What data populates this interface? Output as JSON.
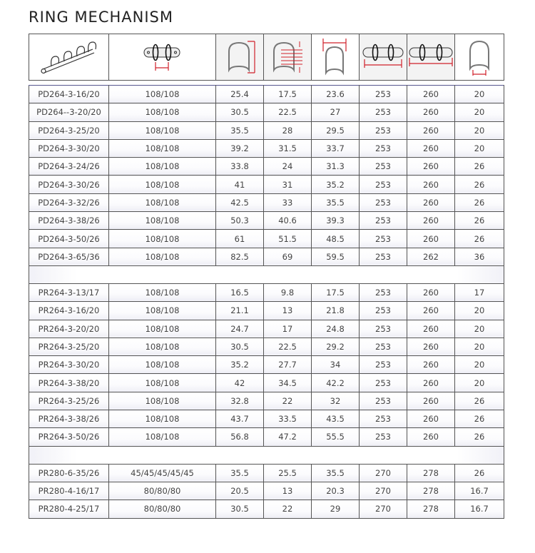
{
  "title": "RING MECHANISM",
  "header_icons": [
    "ring-mechanism-illustration-icon",
    "ring-pitch-icon",
    "ring-height-icon",
    "sheet-capacity-icon",
    "ring-width-icon",
    "base-length-icon",
    "overall-length-icon",
    "ring-base-width-icon"
  ],
  "groups": [
    [
      [
        "PD264-3-16/20",
        "108/108",
        "25.4",
        "17.5",
        "23.6",
        "253",
        "260",
        "20"
      ],
      [
        "PD264--3-20/20",
        "108/108",
        "30.5",
        "22.5",
        "27",
        "253",
        "260",
        "20"
      ],
      [
        "PD264-3-25/20",
        "108/108",
        "35.5",
        "28",
        "29.5",
        "253",
        "260",
        "20"
      ],
      [
        "PD264-3-30/20",
        "108/108",
        "39.2",
        "31.5",
        "33.7",
        "253",
        "260",
        "20"
      ],
      [
        "PD264-3-24/26",
        "108/108",
        "33.8",
        "24",
        "31.3",
        "253",
        "260",
        "26"
      ],
      [
        "PD264-3-30/26",
        "108/108",
        "41",
        "31",
        "35.2",
        "253",
        "260",
        "26"
      ],
      [
        "PD264-3-32/26",
        "108/108",
        "42.5",
        "33",
        "35.5",
        "253",
        "260",
        "26"
      ],
      [
        "PD264-3-38/26",
        "108/108",
        "50.3",
        "40.6",
        "39.3",
        "253",
        "260",
        "26"
      ],
      [
        "PD264-3-50/26",
        "108/108",
        "61",
        "51.5",
        "48.5",
        "253",
        "260",
        "26"
      ],
      [
        "PD264-3-65/36",
        "108/108",
        "82.5",
        "69",
        "59.5",
        "253",
        "262",
        "36"
      ]
    ],
    [
      [
        "PR264-3-13/17",
        "108/108",
        "16.5",
        "9.8",
        "17.5",
        "253",
        "260",
        "17"
      ],
      [
        "PR264-3-16/20",
        "108/108",
        "21.1",
        "13",
        "21.8",
        "253",
        "260",
        "20"
      ],
      [
        "PR264-3-20/20",
        "108/108",
        "24.7",
        "17",
        "24.8",
        "253",
        "260",
        "20"
      ],
      [
        "PR264-3-25/20",
        "108/108",
        "30.5",
        "22.5",
        "29.2",
        "253",
        "260",
        "20"
      ],
      [
        "PR264-3-30/20",
        "108/108",
        "35.2",
        "27.7",
        "34",
        "253",
        "260",
        "20"
      ],
      [
        "PR264-3-38/20",
        "108/108",
        "42",
        "34.5",
        "42.2",
        "253",
        "260",
        "20"
      ],
      [
        "PR264-3-25/26",
        "108/108",
        "32.8",
        "22",
        "32",
        "253",
        "260",
        "26"
      ],
      [
        "PR264-3-38/26",
        "108/108",
        "43.7",
        "33.5",
        "43.5",
        "253",
        "260",
        "26"
      ],
      [
        "PR264-3-50/26",
        "108/108",
        "56.8",
        "47.2",
        "55.5",
        "253",
        "260",
        "26"
      ]
    ],
    [
      [
        "PR280-6-35/26",
        "45/45/45/45/45",
        "35.5",
        "25.5",
        "35.5",
        "270",
        "278",
        "26"
      ],
      [
        "PR280-4-16/17",
        "80/80/80",
        "20.5",
        "13",
        "20.3",
        "270",
        "278",
        "16.7"
      ],
      [
        "PR280-4-25/17",
        "80/80/80",
        "30.5",
        "22",
        "29",
        "270",
        "278",
        "16.7"
      ]
    ]
  ],
  "colors": {
    "dimension": "#d0202a",
    "border": "#555555"
  }
}
